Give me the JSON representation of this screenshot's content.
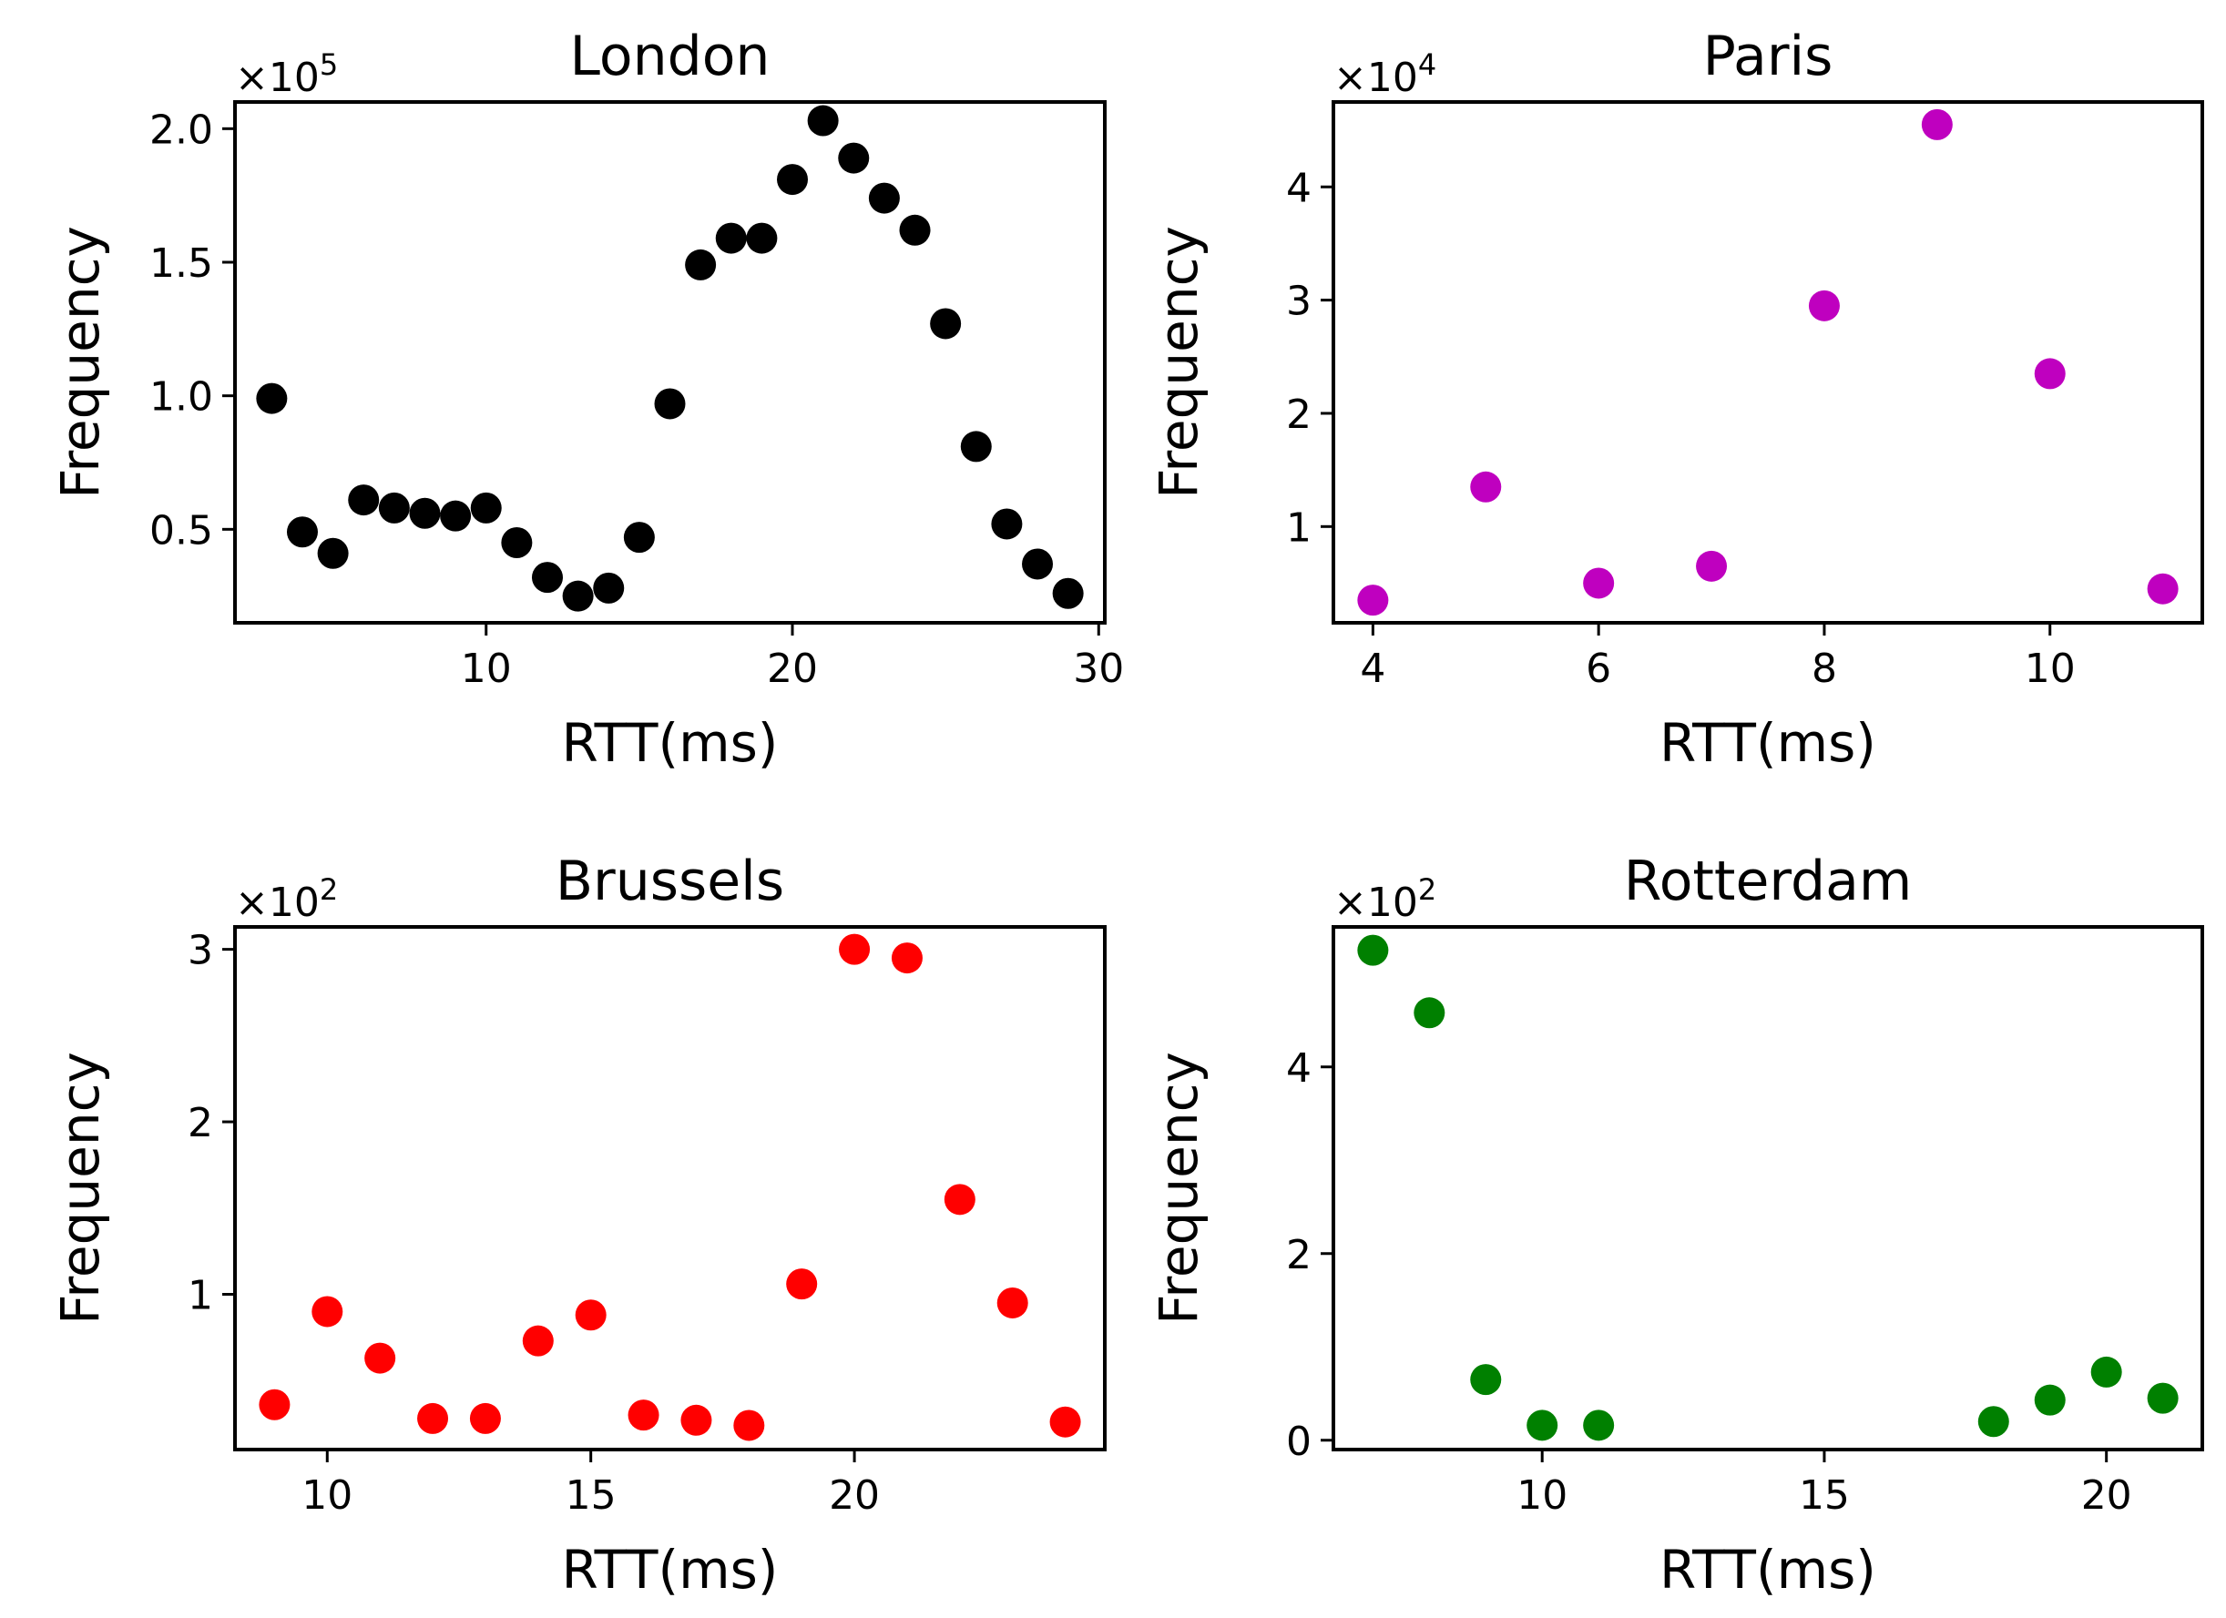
{
  "chart_data": [
    {
      "type": "scatter",
      "title": "London",
      "xlabel": "RTT(ms)",
      "ylabel": "Frequency",
      "y_multiplier_base": "×10",
      "y_multiplier_exp": "5",
      "color": "#000000",
      "xlim": [
        1.8,
        30.2
      ],
      "ylim": [
        0.15,
        2.1
      ],
      "xticks": [
        10,
        20,
        30
      ],
      "xtick_labels": [
        "10",
        "20",
        "30"
      ],
      "yticks": [
        0.5,
        1.0,
        1.5,
        2.0
      ],
      "ytick_labels": [
        "0.5",
        "1.0",
        "1.5",
        "2.0"
      ],
      "x": [
        3,
        4,
        5,
        6,
        7,
        8,
        9,
        10,
        11,
        12,
        13,
        14,
        15,
        16,
        17,
        18,
        19,
        20,
        21,
        22,
        23,
        24,
        25,
        26,
        27,
        28,
        29
      ],
      "y": [
        0.99,
        0.49,
        0.41,
        0.61,
        0.58,
        0.56,
        0.55,
        0.58,
        0.45,
        0.32,
        0.25,
        0.28,
        0.47,
        0.97,
        1.49,
        1.59,
        1.59,
        1.81,
        2.03,
        1.89,
        1.74,
        1.62,
        1.27,
        0.81,
        0.52,
        0.37,
        0.26
      ]
    },
    {
      "type": "scatter",
      "title": "Paris",
      "xlabel": "RTT(ms)",
      "ylabel": "Frequency",
      "y_multiplier_base": "×10",
      "y_multiplier_exp": "4",
      "color": "#bf00bf",
      "xlim": [
        3.65,
        11.35
      ],
      "ylim": [
        0.15,
        4.75
      ],
      "xticks": [
        4,
        6,
        8,
        10
      ],
      "xtick_labels": [
        "4",
        "6",
        "8",
        "10"
      ],
      "yticks": [
        1,
        2,
        3,
        4
      ],
      "ytick_labels": [
        "1",
        "2",
        "3",
        "4"
      ],
      "x": [
        4,
        5,
        6,
        7,
        8,
        9,
        10,
        11
      ],
      "y": [
        0.35,
        1.35,
        0.5,
        0.65,
        2.95,
        4.55,
        2.35,
        0.45
      ]
    },
    {
      "type": "scatter",
      "title": "Brussels",
      "xlabel": "RTT(ms)",
      "ylabel": "Frequency",
      "y_multiplier_base": "×10",
      "y_multiplier_exp": "2",
      "color": "#ff0000",
      "xlim": [
        8.25,
        24.75
      ],
      "ylim": [
        0.1,
        3.13
      ],
      "xticks": [
        10,
        15,
        20
      ],
      "xtick_labels": [
        "10",
        "15",
        "20"
      ],
      "yticks": [
        1,
        2,
        3
      ],
      "ytick_labels": [
        "1",
        "2",
        "3"
      ],
      "x": [
        9,
        10,
        11,
        12,
        13,
        14,
        15,
        16,
        17,
        18,
        19,
        20,
        21,
        22,
        23,
        24
      ],
      "y": [
        0.36,
        0.9,
        0.63,
        0.28,
        0.28,
        0.73,
        0.88,
        0.3,
        0.27,
        0.24,
        1.06,
        3.0,
        2.95,
        1.55,
        0.95,
        0.26
      ]
    },
    {
      "type": "scatter",
      "title": "Rotterdam",
      "xlabel": "RTT(ms)",
      "ylabel": "Frequency",
      "y_multiplier_base": "×10",
      "y_multiplier_exp": "2",
      "color": "#008000",
      "xlim": [
        6.3,
        21.7
      ],
      "ylim": [
        -0.1,
        5.5
      ],
      "xticks": [
        10,
        15,
        20
      ],
      "xtick_labels": [
        "10",
        "15",
        "20"
      ],
      "yticks": [
        0,
        2,
        4
      ],
      "ytick_labels": [
        "0",
        "2",
        "4"
      ],
      "x": [
        7,
        8,
        9,
        10,
        11,
        18,
        19,
        20,
        21
      ],
      "y": [
        5.25,
        4.58,
        0.65,
        0.16,
        0.16,
        0.2,
        0.43,
        0.73,
        0.45
      ]
    }
  ]
}
